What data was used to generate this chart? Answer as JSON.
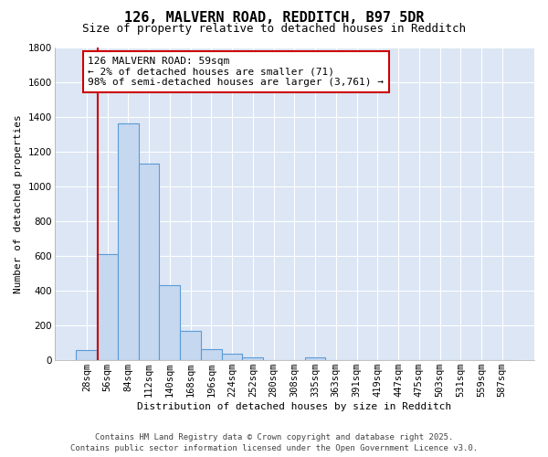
{
  "title_line1": "126, MALVERN ROAD, REDDITCH, B97 5DR",
  "title_line2": "Size of property relative to detached houses in Redditch",
  "xlabel": "Distribution of detached houses by size in Redditch",
  "ylabel": "Number of detached properties",
  "bar_categories": [
    "28sqm",
    "56sqm",
    "84sqm",
    "112sqm",
    "140sqm",
    "168sqm",
    "196sqm",
    "224sqm",
    "252sqm",
    "280sqm",
    "308sqm",
    "335sqm",
    "363sqm",
    "391sqm",
    "419sqm",
    "447sqm",
    "475sqm",
    "503sqm",
    "531sqm",
    "559sqm",
    "587sqm"
  ],
  "bar_values": [
    60,
    610,
    1360,
    1130,
    430,
    170,
    65,
    40,
    15,
    0,
    0,
    15,
    0,
    0,
    0,
    0,
    0,
    0,
    0,
    0,
    0
  ],
  "bar_color": "#c5d8f0",
  "bar_edge_color": "#5b9bd5",
  "fig_background_color": "#ffffff",
  "ax_background_color": "#dce6f5",
  "grid_color": "#ffffff",
  "vline_color": "#cc0000",
  "vline_position": 0.55,
  "annotation_text": "126 MALVERN ROAD: 59sqm\n← 2% of detached houses are smaller (71)\n98% of semi-detached houses are larger (3,761) →",
  "annotation_box_color": "#ffffff",
  "annotation_box_edge": "#cc0000",
  "ylim": [
    0,
    1800
  ],
  "yticks": [
    0,
    200,
    400,
    600,
    800,
    1000,
    1200,
    1400,
    1600,
    1800
  ],
  "footer_line1": "Contains HM Land Registry data © Crown copyright and database right 2025.",
  "footer_line2": "Contains public sector information licensed under the Open Government Licence v3.0.",
  "title_fontsize": 11,
  "subtitle_fontsize": 9,
  "axis_label_fontsize": 8,
  "tick_fontsize": 7.5,
  "annotation_fontsize": 8,
  "footer_fontsize": 6.5
}
